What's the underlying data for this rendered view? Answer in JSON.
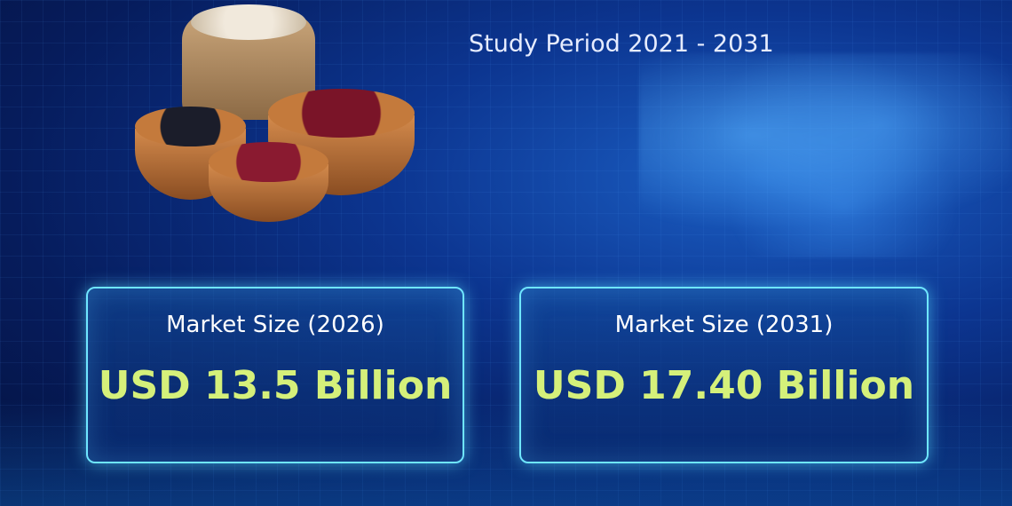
{
  "header": {
    "subtitle": "Study Period 2021 - 2031"
  },
  "cards": [
    {
      "label": "Market Size (2026)",
      "value": "USD 13.5 Billion"
    },
    {
      "label": "Market Size (2031)",
      "value": "USD 17.40 Billion"
    }
  ],
  "colors": {
    "accent": "#d5f07a",
    "border": "#6fe6ff",
    "background": "#0c3590"
  }
}
